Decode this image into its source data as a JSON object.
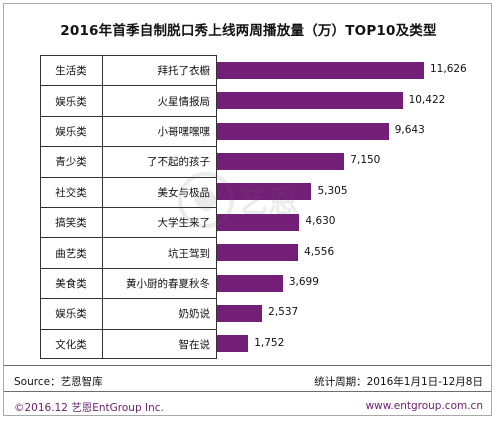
{
  "chart_data": {
    "type": "bar",
    "orientation": "horizontal",
    "title": "2016年首季自制脱口秀上线两周播放量（万）TOP10及类型",
    "categories": [
      "生活类",
      "娱乐类",
      "娱乐类",
      "青少类",
      "社交类",
      "搞笑类",
      "曲艺类",
      "美食类",
      "娱乐类",
      "文化类"
    ],
    "names": [
      "拜托了衣橱",
      "火星情报局",
      "小哥嘿嘿嘿",
      "了不起的孩子",
      "美女与极品",
      "大学生来了",
      "坑王驾到",
      "黄小厨的春夏秋冬",
      "奶奶说",
      "智在说"
    ],
    "values": [
      11626,
      10422,
      9643,
      7150,
      5305,
      4630,
      4556,
      3699,
      2537,
      1752
    ],
    "value_labels": [
      "11,626",
      "10,422",
      "9,643",
      "7,150",
      "5,305",
      "4,630",
      "4,556",
      "3,699",
      "2,537",
      "1,752"
    ],
    "xlim": [
      0,
      11626
    ],
    "bar_color": "#741f77",
    "grid": false,
    "legend": "none"
  },
  "watermark": {
    "text": "艺恩",
    "subtext": "entgroup"
  },
  "footer": {
    "source": "Source：艺恩智库",
    "period": "统计周期：2016年1月1日-12月8日",
    "copyright": "©2016.12  艺恩EntGroup Inc.",
    "website": "www.entgroup.com.cn"
  }
}
